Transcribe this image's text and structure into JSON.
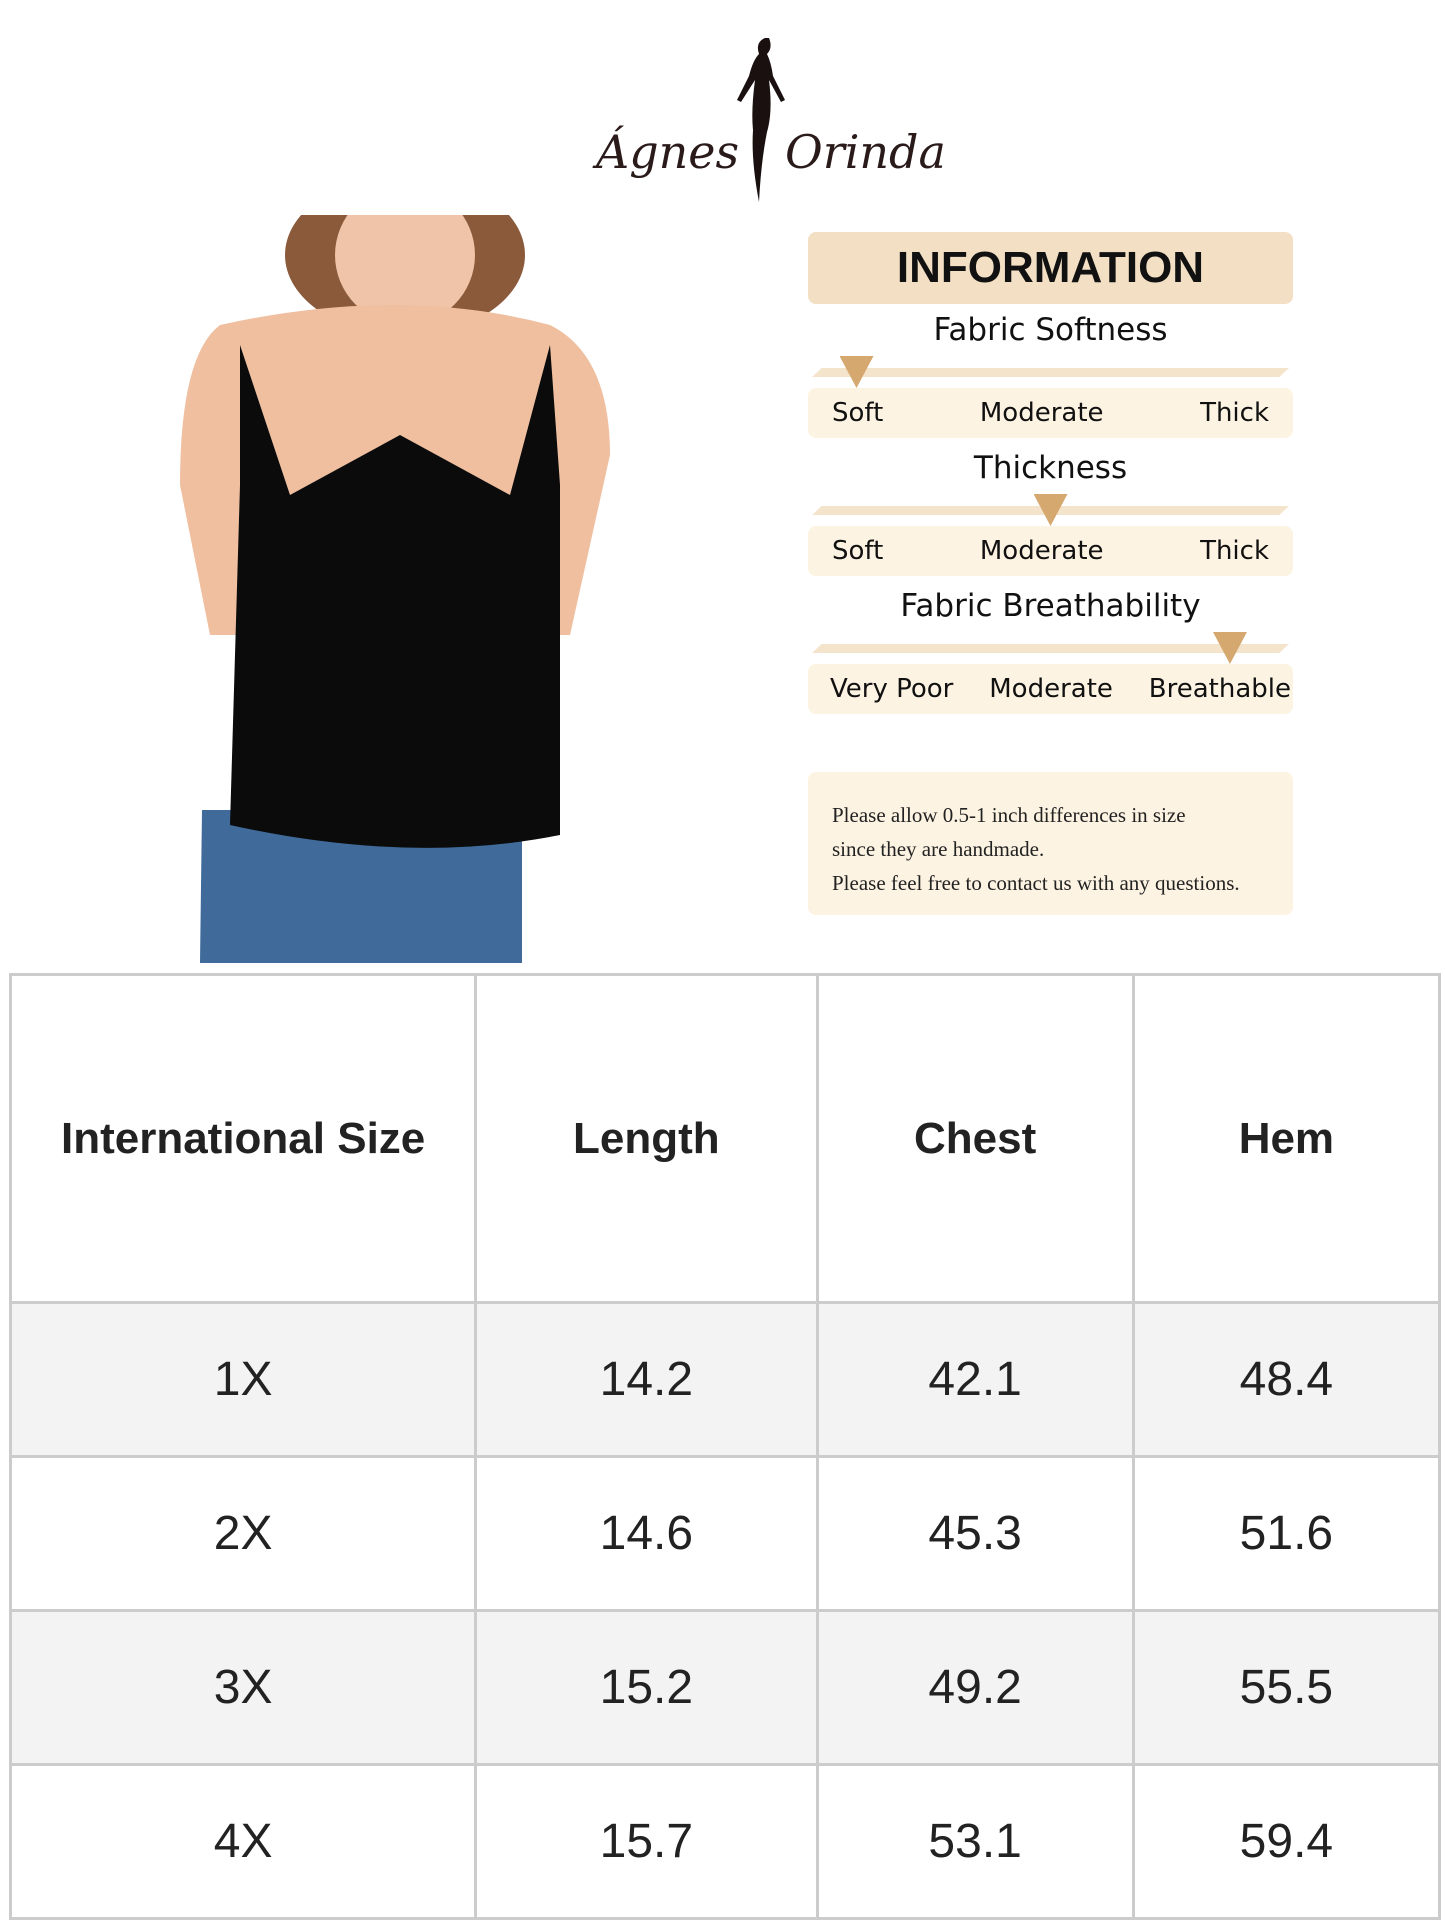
{
  "brand": {
    "left": "Ágnes",
    "right": "Orinda"
  },
  "info": {
    "title": "INFORMATION",
    "metrics": [
      {
        "title": "Fabric Softness",
        "labels": [
          "Soft",
          "Moderate",
          "Thick"
        ],
        "level": 0.1
      },
      {
        "title": "Thickness",
        "labels": [
          "Soft",
          "Moderate",
          "Thick"
        ],
        "level": 0.5
      },
      {
        "title": "Fabric Breathability",
        "labels": [
          "Very Poor",
          "Moderate",
          "Breathable"
        ],
        "level": 0.87
      }
    ],
    "accent": "#d5a870"
  },
  "note": {
    "lines": [
      "Please allow 0.5-1 inch differences in size",
      "since they are handmade.",
      "Please feel free to contact us with any questions."
    ]
  },
  "table": {
    "headers": [
      "International Size",
      "Length",
      "Chest",
      "Hem"
    ],
    "rows": [
      [
        "1X",
        "14.2",
        "42.1",
        "48.4"
      ],
      [
        "2X",
        "14.6",
        "45.3",
        "51.6"
      ],
      [
        "3X",
        "15.2",
        "49.2",
        "55.5"
      ],
      [
        "4X",
        "15.7",
        "53.1",
        "59.4"
      ]
    ]
  }
}
